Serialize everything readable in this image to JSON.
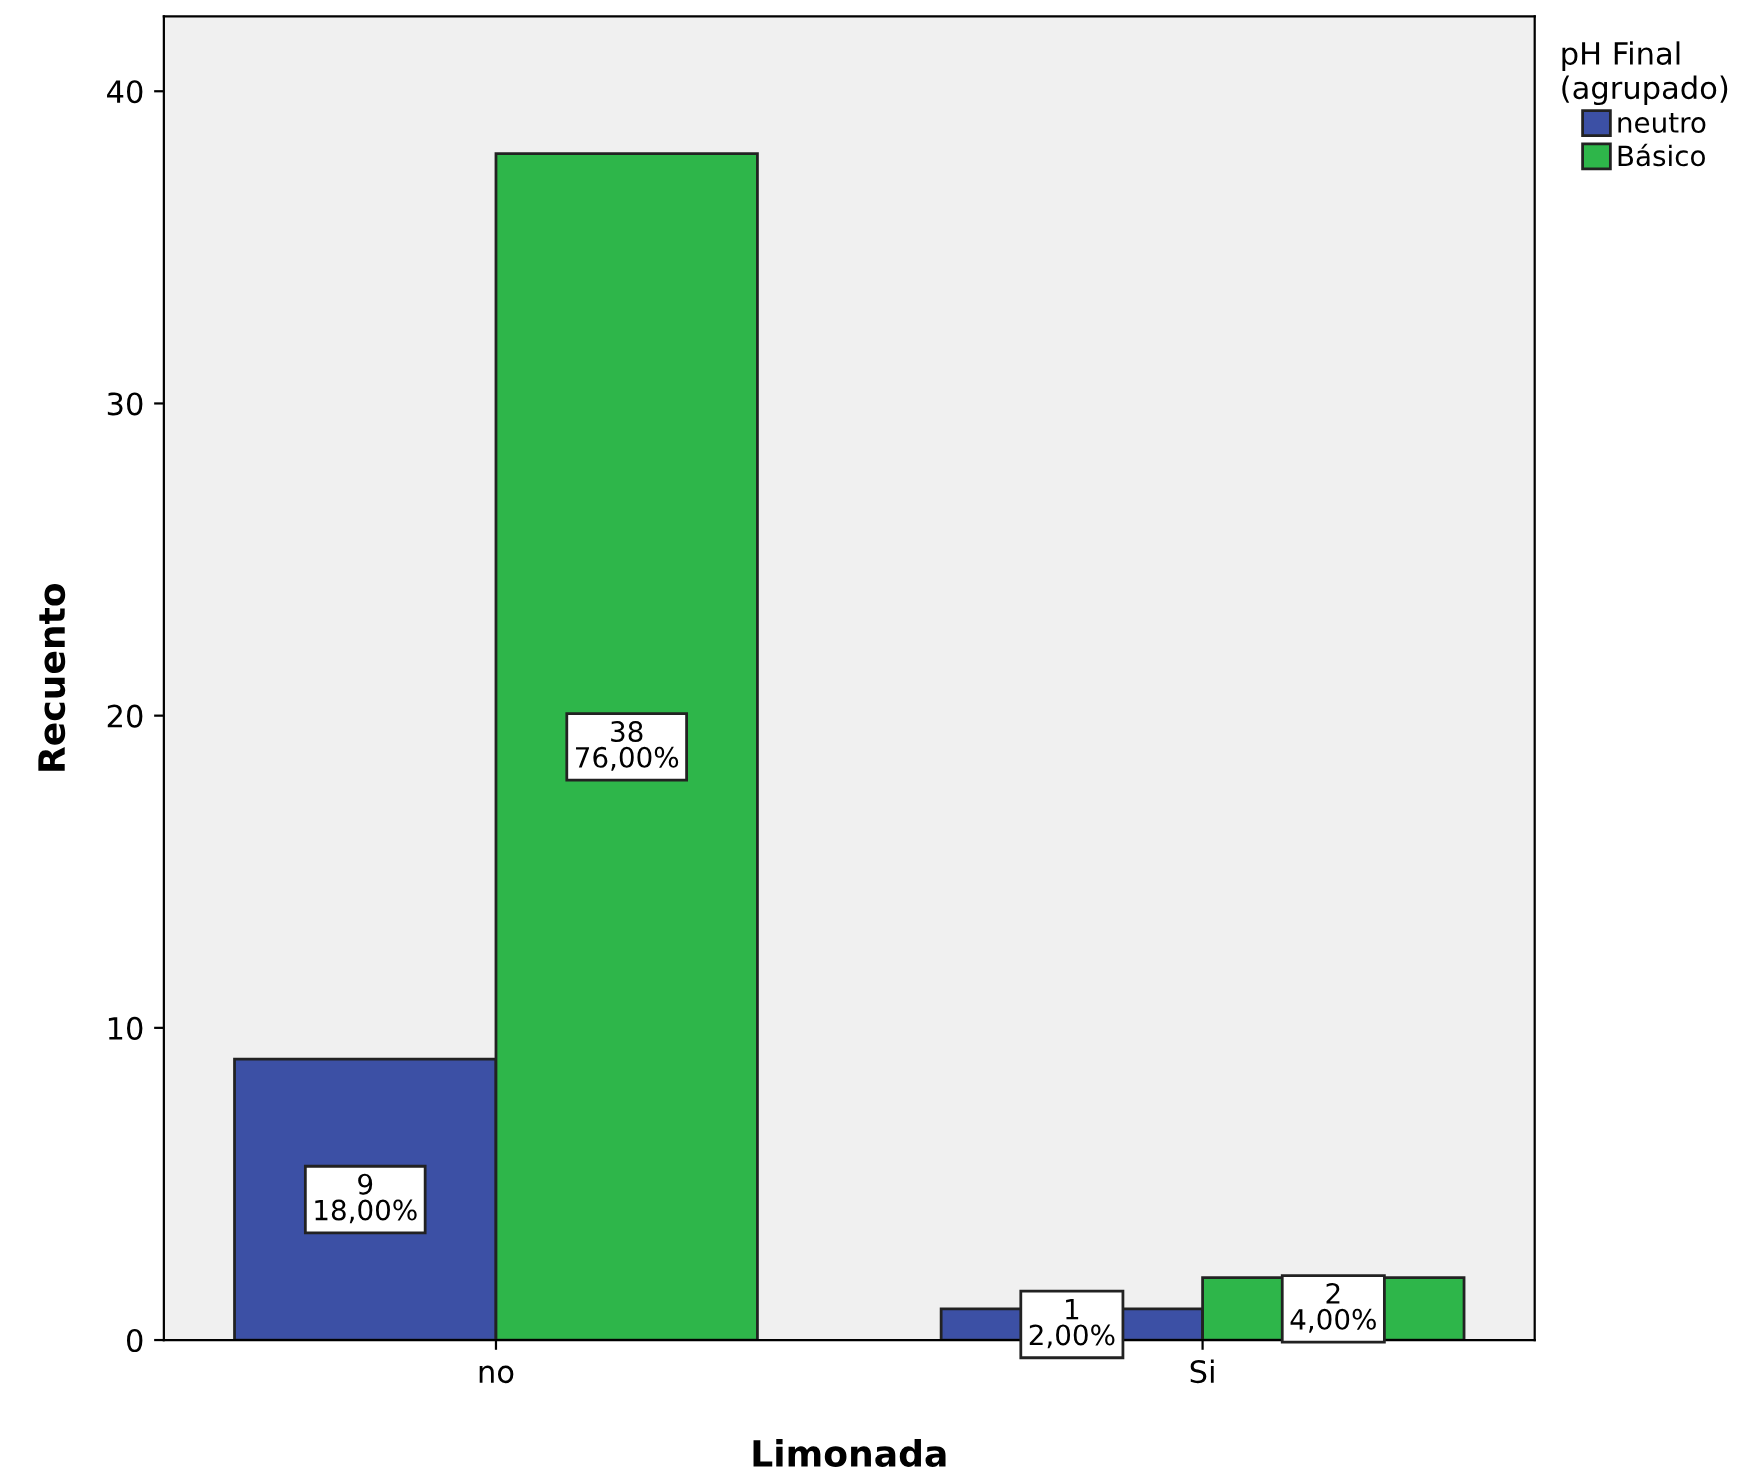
{
  "chart_data": {
    "type": "bar",
    "xlabel": "Limonada",
    "ylabel": "Recuento",
    "legend_title": "pH Final\n(agrupado)",
    "categories": [
      "no",
      "Si"
    ],
    "series": [
      {
        "name": "neutro",
        "color": "#3c50a5",
        "values": [
          9,
          1
        ],
        "value_labels": [
          "9\n18,00%",
          "1\n2,00%"
        ]
      },
      {
        "name": "Básico",
        "color": "#2eb64a",
        "values": [
          38,
          2
        ],
        "value_labels": [
          "38\n76,00%",
          "2\n4,00%"
        ]
      }
    ],
    "ylim": [
      0,
      42.4
    ],
    "yticks": [
      0,
      10,
      20,
      30,
      40
    ],
    "grid": false,
    "legend": "top right"
  }
}
